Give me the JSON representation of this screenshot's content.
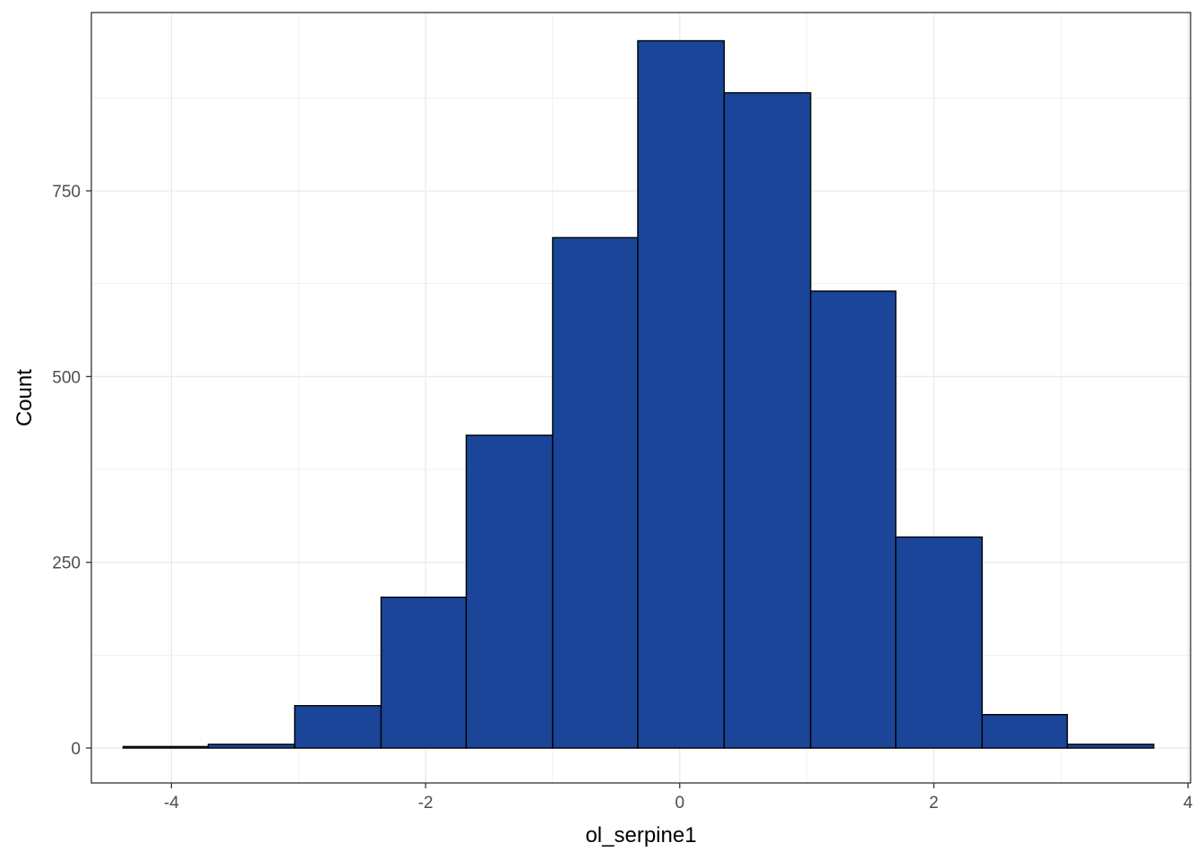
{
  "chart_data": {
    "type": "bar",
    "subtype": "histogram",
    "xlabel": "ol_serpine1",
    "ylabel": "Count",
    "xlim": [
      -4.63,
      4.02
    ],
    "ylim": [
      -47,
      990
    ],
    "x_ticks": [
      -4,
      -2,
      0,
      2,
      4
    ],
    "y_ticks": [
      0,
      250,
      500,
      750
    ],
    "grid": true,
    "bin_edges": [
      -4.38,
      -3.71,
      -3.03,
      -2.35,
      -1.68,
      -1.0,
      -0.33,
      0.35,
      1.03,
      1.7,
      2.38,
      3.05,
      3.73
    ],
    "values": [
      2,
      5,
      57,
      203,
      421,
      687,
      952,
      882,
      615,
      284,
      45,
      5
    ],
    "colors": {
      "fill": "#1a4599",
      "outline": "#000000",
      "grid": "#ebebeb",
      "panel_border": "#333333"
    }
  }
}
